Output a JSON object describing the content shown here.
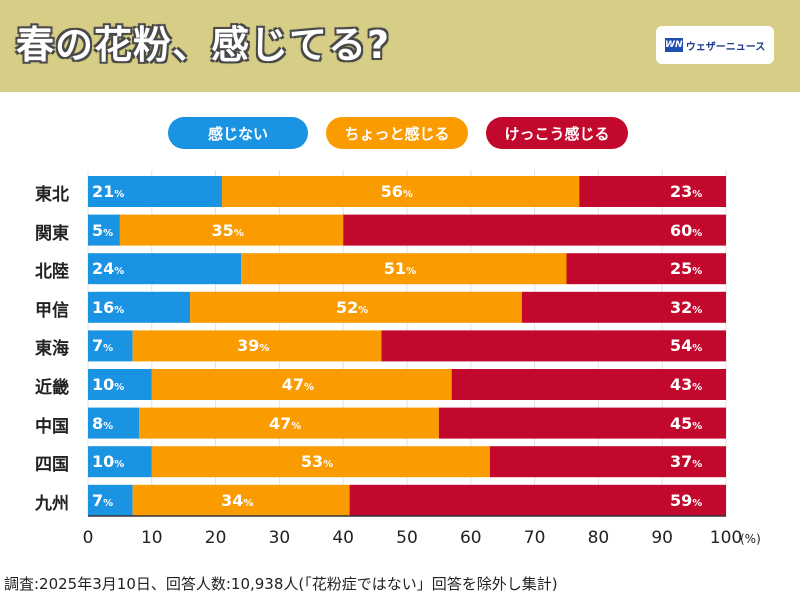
{
  "header": {
    "title": "春の花粉、感じてる?",
    "brand": "ウェザーニュース",
    "brand_mark": "WN"
  },
  "colors": {
    "header_bg": "#d6cd86",
    "none": "#1a93e2",
    "some": "#fa9b00",
    "lots": "#c3082e"
  },
  "chart_data": {
    "type": "bar",
    "orientation": "horizontal-stacked-100",
    "categories": [
      "東北",
      "関東",
      "北陸",
      "甲信",
      "東海",
      "近畿",
      "中国",
      "四国",
      "九州"
    ],
    "series": [
      {
        "name": "感じない",
        "values": [
          21,
          5,
          24,
          16,
          7,
          10,
          8,
          10,
          7
        ]
      },
      {
        "name": "ちょっと感じる",
        "values": [
          56,
          35,
          51,
          52,
          39,
          47,
          47,
          53,
          34
        ]
      },
      {
        "name": "けっこう感じる",
        "values": [
          23,
          60,
          25,
          32,
          54,
          43,
          45,
          37,
          59
        ]
      }
    ],
    "xticks": [
      "0",
      "10",
      "20",
      "30",
      "40",
      "50",
      "60",
      "70",
      "80",
      "90",
      "100"
    ],
    "xunit": "(%)",
    "value_suffix": "%",
    "xlim": [
      0,
      100
    ]
  },
  "footnote": "調査:2025年3月10日、回答人数:10,938人(「花粉症ではない」回答を除外し集計)"
}
